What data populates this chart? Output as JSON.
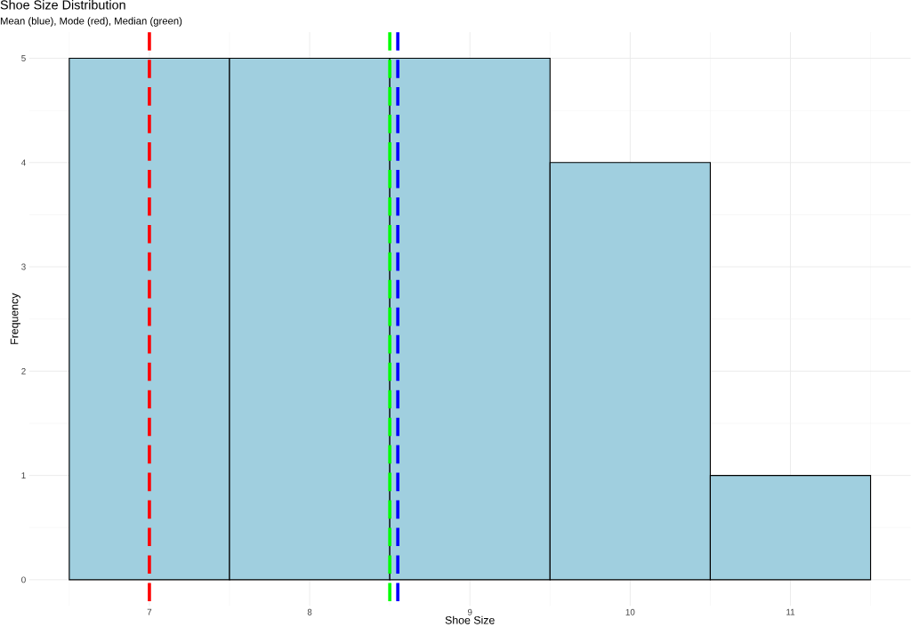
{
  "chart_data": {
    "type": "histogram",
    "title": "Shoe Size Distribution",
    "subtitle": "Mean (blue), Mode (red), Median (green)",
    "xlabel": "Shoe Size",
    "ylabel": "Frequency",
    "bins": [
      6.5,
      7.5,
      8.5,
      9.5,
      10.5,
      11.5
    ],
    "values": [
      5,
      5,
      5,
      4,
      1
    ],
    "color": "#a0cfdf",
    "xlim": [
      6.25,
      11.75
    ],
    "ylim": [
      -0.25,
      5.25
    ],
    "xticks": [
      7,
      8,
      9,
      10,
      11
    ],
    "yticks": [
      0,
      1,
      2,
      3,
      4,
      5
    ],
    "grid": true,
    "ref_lines": [
      {
        "axis": "x",
        "value": 8.55,
        "color": "#0000ff",
        "line_style": "dashed"
      },
      {
        "axis": "x",
        "value": 7,
        "color": "#ff0000",
        "line_style": "dashed"
      },
      {
        "axis": "x",
        "value": 8.5,
        "color": "#00ff00",
        "line_style": "dashed"
      }
    ]
  }
}
